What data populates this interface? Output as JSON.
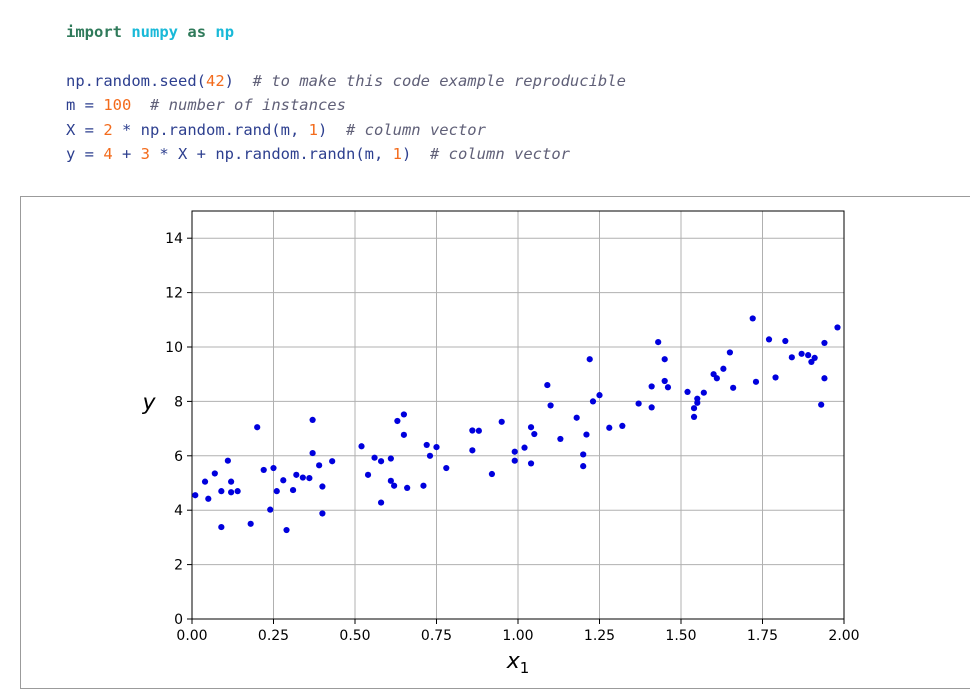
{
  "code": {
    "lines": [
      [
        {
          "t": "import",
          "c": "kw"
        },
        {
          "t": " ",
          "c": ""
        },
        {
          "t": "numpy",
          "c": "mod"
        },
        {
          "t": " ",
          "c": ""
        },
        {
          "t": "as",
          "c": "kw"
        },
        {
          "t": " ",
          "c": ""
        },
        {
          "t": "np",
          "c": "mod"
        }
      ],
      [],
      [
        {
          "t": "np.random.seed(",
          "c": ""
        },
        {
          "t": "42",
          "c": "num"
        },
        {
          "t": ")  ",
          "c": ""
        },
        {
          "t": "# to make this code example reproducible",
          "c": "com"
        }
      ],
      [
        {
          "t": "m = ",
          "c": ""
        },
        {
          "t": "100",
          "c": "num"
        },
        {
          "t": "  ",
          "c": ""
        },
        {
          "t": "# number of instances",
          "c": "com"
        }
      ],
      [
        {
          "t": "X = ",
          "c": ""
        },
        {
          "t": "2",
          "c": "num"
        },
        {
          "t": " * np.random.rand(m, ",
          "c": ""
        },
        {
          "t": "1",
          "c": "num"
        },
        {
          "t": ")  ",
          "c": ""
        },
        {
          "t": "# column vector",
          "c": "com"
        }
      ],
      [
        {
          "t": "y = ",
          "c": ""
        },
        {
          "t": "4",
          "c": "num"
        },
        {
          "t": " + ",
          "c": ""
        },
        {
          "t": "3",
          "c": "num"
        },
        {
          "t": " * X + np.random.randn(m, ",
          "c": ""
        },
        {
          "t": "1",
          "c": "num"
        },
        {
          "t": ")  ",
          "c": ""
        },
        {
          "t": "# column vector",
          "c": "com"
        }
      ]
    ]
  },
  "chart_data": {
    "type": "scatter",
    "title": "",
    "xlabel": "x",
    "xlabel_subscript": "1",
    "ylabel": "y",
    "xlim": [
      0,
      2
    ],
    "ylim": [
      0,
      15
    ],
    "xticks": [
      "0.00",
      "0.25",
      "0.50",
      "0.75",
      "1.00",
      "1.25",
      "1.50",
      "1.75",
      "2.00"
    ],
    "yticks": [
      "0",
      "2",
      "4",
      "6",
      "8",
      "10",
      "12",
      "14"
    ],
    "xtick_values": [
      0,
      0.25,
      0.5,
      0.75,
      1.0,
      1.25,
      1.5,
      1.75,
      2.0
    ],
    "ytick_values": [
      0,
      2,
      4,
      6,
      8,
      10,
      12,
      14
    ],
    "grid": true,
    "marker_color": "#0000dd",
    "series": [
      {
        "points": [
          [
            0.01,
            4.55
          ],
          [
            0.04,
            5.05
          ],
          [
            0.05,
            4.42
          ],
          [
            0.07,
            5.35
          ],
          [
            0.09,
            3.38
          ],
          [
            0.09,
            4.7
          ],
          [
            0.11,
            5.82
          ],
          [
            0.12,
            4.66
          ],
          [
            0.12,
            5.05
          ],
          [
            0.14,
            4.7
          ],
          [
            0.18,
            3.5
          ],
          [
            0.2,
            7.05
          ],
          [
            0.22,
            5.48
          ],
          [
            0.24,
            4.02
          ],
          [
            0.25,
            5.55
          ],
          [
            0.26,
            4.7
          ],
          [
            0.28,
            5.1
          ],
          [
            0.29,
            3.27
          ],
          [
            0.31,
            4.74
          ],
          [
            0.32,
            5.3
          ],
          [
            0.34,
            5.2
          ],
          [
            0.36,
            5.18
          ],
          [
            0.37,
            6.1
          ],
          [
            0.37,
            7.32
          ],
          [
            0.39,
            5.65
          ],
          [
            0.4,
            3.88
          ],
          [
            0.4,
            4.87
          ],
          [
            0.43,
            5.8
          ],
          [
            0.52,
            6.35
          ],
          [
            0.54,
            5.3
          ],
          [
            0.56,
            5.93
          ],
          [
            0.58,
            5.8
          ],
          [
            0.58,
            4.28
          ],
          [
            0.61,
            5.08
          ],
          [
            0.61,
            5.9
          ],
          [
            0.62,
            4.9
          ],
          [
            0.63,
            7.28
          ],
          [
            0.65,
            6.77
          ],
          [
            0.65,
            7.52
          ],
          [
            0.66,
            4.82
          ],
          [
            0.71,
            4.9
          ],
          [
            0.72,
            6.4
          ],
          [
            0.73,
            6.0
          ],
          [
            0.75,
            6.32
          ],
          [
            0.78,
            5.55
          ],
          [
            0.86,
            6.93
          ],
          [
            0.86,
            6.2
          ],
          [
            0.88,
            6.92
          ],
          [
            0.92,
            5.33
          ],
          [
            0.95,
            7.25
          ],
          [
            0.99,
            6.15
          ],
          [
            0.99,
            5.82
          ],
          [
            1.02,
            6.3
          ],
          [
            1.04,
            7.05
          ],
          [
            1.04,
            5.72
          ],
          [
            1.05,
            6.8
          ],
          [
            1.09,
            8.6
          ],
          [
            1.1,
            7.85
          ],
          [
            1.13,
            6.62
          ],
          [
            1.18,
            7.4
          ],
          [
            1.2,
            6.05
          ],
          [
            1.2,
            5.62
          ],
          [
            1.21,
            6.78
          ],
          [
            1.22,
            9.55
          ],
          [
            1.23,
            8.0
          ],
          [
            1.25,
            8.23
          ],
          [
            1.28,
            7.03
          ],
          [
            1.32,
            7.1
          ],
          [
            1.37,
            7.92
          ],
          [
            1.41,
            8.55
          ],
          [
            1.41,
            7.78
          ],
          [
            1.43,
            10.18
          ],
          [
            1.45,
            9.55
          ],
          [
            1.45,
            8.75
          ],
          [
            1.46,
            8.52
          ],
          [
            1.52,
            8.35
          ],
          [
            1.54,
            7.75
          ],
          [
            1.54,
            7.43
          ],
          [
            1.55,
            7.95
          ],
          [
            1.55,
            8.1
          ],
          [
            1.57,
            8.32
          ],
          [
            1.6,
            9.0
          ],
          [
            1.61,
            8.85
          ],
          [
            1.63,
            9.2
          ],
          [
            1.65,
            9.8
          ],
          [
            1.66,
            8.5
          ],
          [
            1.72,
            11.05
          ],
          [
            1.73,
            8.72
          ],
          [
            1.77,
            10.28
          ],
          [
            1.79,
            8.88
          ],
          [
            1.82,
            10.22
          ],
          [
            1.84,
            9.62
          ],
          [
            1.87,
            9.75
          ],
          [
            1.89,
            9.7
          ],
          [
            1.9,
            9.45
          ],
          [
            1.91,
            9.6
          ],
          [
            1.93,
            7.88
          ],
          [
            1.94,
            8.85
          ],
          [
            1.94,
            10.15
          ],
          [
            1.98,
            10.72
          ]
        ]
      }
    ]
  }
}
